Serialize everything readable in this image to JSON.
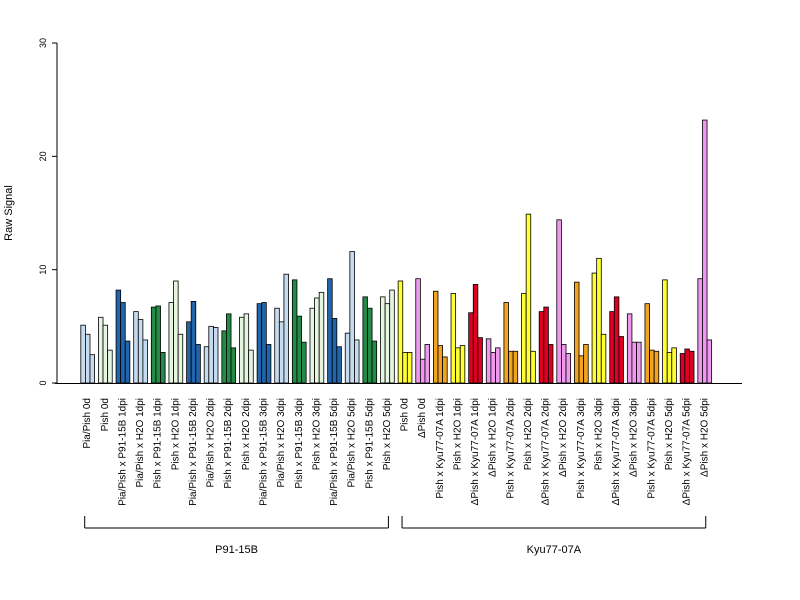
{
  "chart_data": {
    "type": "bar",
    "ylabel": "Raw Signal",
    "ylim": [
      0,
      30
    ],
    "yticks": [
      0,
      10,
      20,
      30
    ],
    "grid": false,
    "categories": [
      "Pia/Pish 0d",
      "Pish 0d",
      "Pia/Pish x P91-15B 1dpi",
      "Pia/Pish x H2O 1dpi",
      "Pish x P91-15B 1dpi",
      "Pish x H2O 1dpi",
      "Pia/Pish x P91-15B 2dpi",
      "Pia/Pish x H2O 2dpi",
      "Pish x P91-15B 2dpi",
      "Pish x H2O 2dpi",
      "Pia/Pish x P91-15B 3dpi",
      "Pia/Pish x H2O 3dpi",
      "Pish x P91-15B 3dpi",
      "Pish x H2O 3dpi",
      "Pia/Pish x P91-15B 5dpi",
      "Pia/Pish x H2O 5dpi",
      "Pish x P91-15B 5dpi",
      "Pish x H2O 5dpi",
      "Pish 0d",
      "ΔPish 0d",
      "Pish x Kyu77-07A 1dpi",
      "Pish x H2O 1dpi",
      "ΔPish x Kyu77-07A 1dpi",
      "ΔPish x H2O 1dpi",
      "Pish x Kyu77-07A 2dpi",
      "Pish x H2O 2dpi",
      "ΔPish x Kyu77-07A 2dpi",
      "ΔPish x H2O 2dpi",
      "Pish x Kyu77-07A 3dpi",
      "Pish x H2O 3dpi",
      "ΔPish x Kyu77-07A 3dpi",
      "ΔPish x H2O 3dpi",
      "Pish x Kyu77-07A 5dpi",
      "Pish x H2O 5dpi",
      "ΔPish x Kyu77-07A 5dpi",
      "ΔPish x H2O 5dpi"
    ],
    "category_colors": [
      "#c6dbef",
      "#e5f5e0",
      "#2166ac",
      "#c6dbef",
      "#238b45",
      "#e5f5e0",
      "#2166ac",
      "#c6dbef",
      "#238b45",
      "#e5f5e0",
      "#2166ac",
      "#c6dbef",
      "#238b45",
      "#e5f5e0",
      "#2166ac",
      "#c6dbef",
      "#238b45",
      "#e5f5e0",
      "#ffff33",
      "#ee99ee",
      "#f2a320",
      "#ffff33",
      "#dd0022",
      "#ee99ee",
      "#f2a320",
      "#ffff33",
      "#dd0022",
      "#ee99ee",
      "#f2a320",
      "#ffff33",
      "#dd0022",
      "#ee99ee",
      "#f2a320",
      "#ffff33",
      "#dd0022",
      "#ee99ee"
    ],
    "values": [
      [
        5.1,
        4.3,
        2.5
      ],
      [
        5.8,
        5.1,
        2.9
      ],
      [
        8.2,
        7.1,
        3.7
      ],
      [
        6.3,
        5.6,
        3.8
      ],
      [
        6.7,
        6.8,
        2.7
      ],
      [
        7.1,
        9.0,
        4.3
      ],
      [
        5.4,
        7.2,
        3.4
      ],
      [
        3.2,
        5.0,
        4.9
      ],
      [
        4.6,
        6.1,
        3.1
      ],
      [
        5.8,
        6.1,
        2.9
      ],
      [
        7.0,
        7.1,
        3.4
      ],
      [
        6.6,
        5.4,
        9.6
      ],
      [
        9.1,
        5.9,
        3.6
      ],
      [
        6.6,
        7.5,
        8.0
      ],
      [
        9.2,
        5.7,
        3.2
      ],
      [
        4.4,
        11.6,
        3.8
      ],
      [
        7.6,
        6.6,
        3.7
      ],
      [
        7.6,
        7.0,
        8.2
      ],
      [
        9.0,
        2.7,
        2.7
      ],
      [
        9.2,
        2.1,
        3.4
      ],
      [
        8.1,
        3.3,
        2.3
      ],
      [
        7.9,
        3.1,
        3.3
      ],
      [
        6.2,
        8.7,
        4.0
      ],
      [
        3.9,
        2.7,
        3.1
      ],
      [
        7.1,
        2.8,
        2.8
      ],
      [
        7.9,
        14.9,
        2.8
      ],
      [
        6.3,
        6.7,
        3.4
      ],
      [
        14.4,
        3.4,
        2.6
      ],
      [
        8.9,
        2.4,
        3.4
      ],
      [
        9.7,
        11.0,
        4.3
      ],
      [
        6.3,
        7.6,
        4.1
      ],
      [
        6.1,
        3.6,
        3.6
      ],
      [
        7.0,
        2.9,
        2.8
      ],
      [
        9.1,
        2.7,
        3.1
      ],
      [
        2.6,
        3.0,
        2.8
      ],
      [
        9.2,
        23.2,
        3.8
      ]
    ],
    "groups": [
      {
        "label": "P91-15B",
        "start": 0,
        "end": 17
      },
      {
        "label": "Kyu77-07A",
        "start": 18,
        "end": 35
      }
    ]
  }
}
